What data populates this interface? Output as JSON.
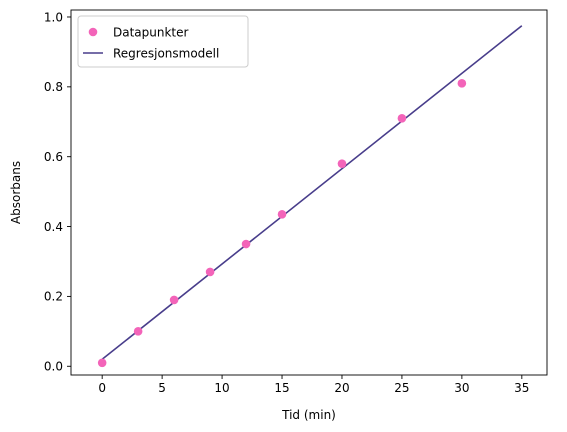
{
  "chart_data": {
    "type": "scatter",
    "title": "",
    "xlabel": "Tid (min)",
    "ylabel": "Absorbans",
    "xlim": [
      -2.6,
      37.1
    ],
    "ylim": [
      -0.025,
      1.02
    ],
    "xticks": [
      0,
      5,
      10,
      15,
      20,
      25,
      30,
      35
    ],
    "yticks": [
      0.0,
      0.2,
      0.4,
      0.6,
      0.8,
      1.0
    ],
    "xtick_labels": [
      "0",
      "5",
      "10",
      "15",
      "20",
      "25",
      "30",
      "35"
    ],
    "ytick_labels": [
      "0.0",
      "0.2",
      "0.4",
      "0.6",
      "0.8",
      "1.0"
    ],
    "grid": false,
    "legend_position": "top-left",
    "series": [
      {
        "name": "Datapunkter",
        "kind": "scatter",
        "color": "#f364b9",
        "x": [
          0,
          3,
          6,
          9,
          12,
          15,
          20,
          25,
          30
        ],
        "y": [
          0.01,
          0.1,
          0.19,
          0.27,
          0.35,
          0.435,
          0.58,
          0.71,
          0.81
        ]
      },
      {
        "name": "Regresjonsmodell",
        "kind": "line",
        "color": "#483d8b",
        "x": [
          0,
          35
        ],
        "y": [
          0.02,
          0.975
        ]
      }
    ]
  }
}
